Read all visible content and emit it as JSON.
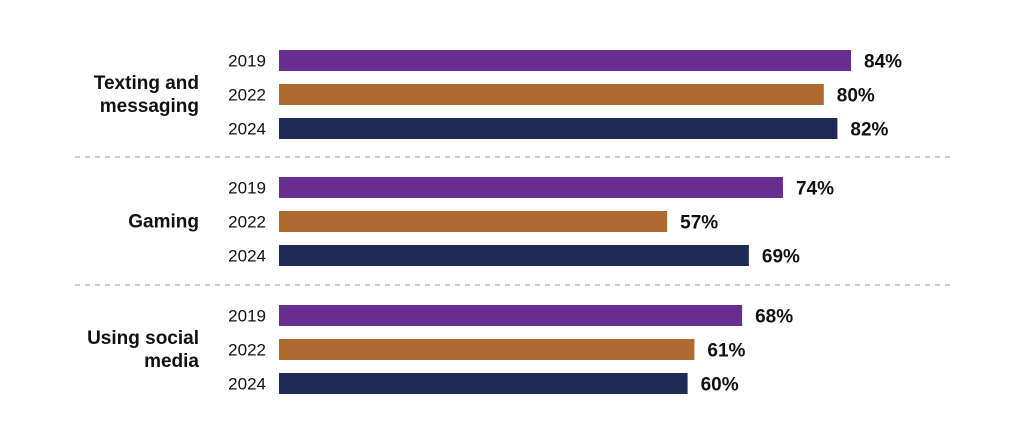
{
  "chart_data": {
    "type": "bar",
    "orientation": "horizontal",
    "grid": false,
    "categories": [
      {
        "label_lines": [
          "Texting and",
          "messaging"
        ],
        "series": [
          {
            "year": "2019",
            "value": 84,
            "label": "84%"
          },
          {
            "year": "2022",
            "value": 80,
            "label": "80%"
          },
          {
            "year": "2024",
            "value": 82,
            "label": "82%"
          }
        ]
      },
      {
        "label_lines": [
          "Gaming"
        ],
        "series": [
          {
            "year": "2019",
            "value": 74,
            "label": "74%"
          },
          {
            "year": "2022",
            "value": 57,
            "label": "57%"
          },
          {
            "year": "2024",
            "value": 69,
            "label": "69%"
          }
        ]
      },
      {
        "label_lines": [
          "Using social",
          "media"
        ],
        "series": [
          {
            "year": "2019",
            "value": 68,
            "label": "68%"
          },
          {
            "year": "2022",
            "value": 61,
            "label": "61%"
          },
          {
            "year": "2024",
            "value": 60,
            "label": "60%"
          }
        ]
      }
    ],
    "colors": {
      "2019": "#682d91",
      "2022": "#b0692f",
      "2024": "#1f2a55"
    },
    "xlim": [
      0,
      100
    ],
    "title": "",
    "xlabel": "",
    "ylabel": ""
  }
}
